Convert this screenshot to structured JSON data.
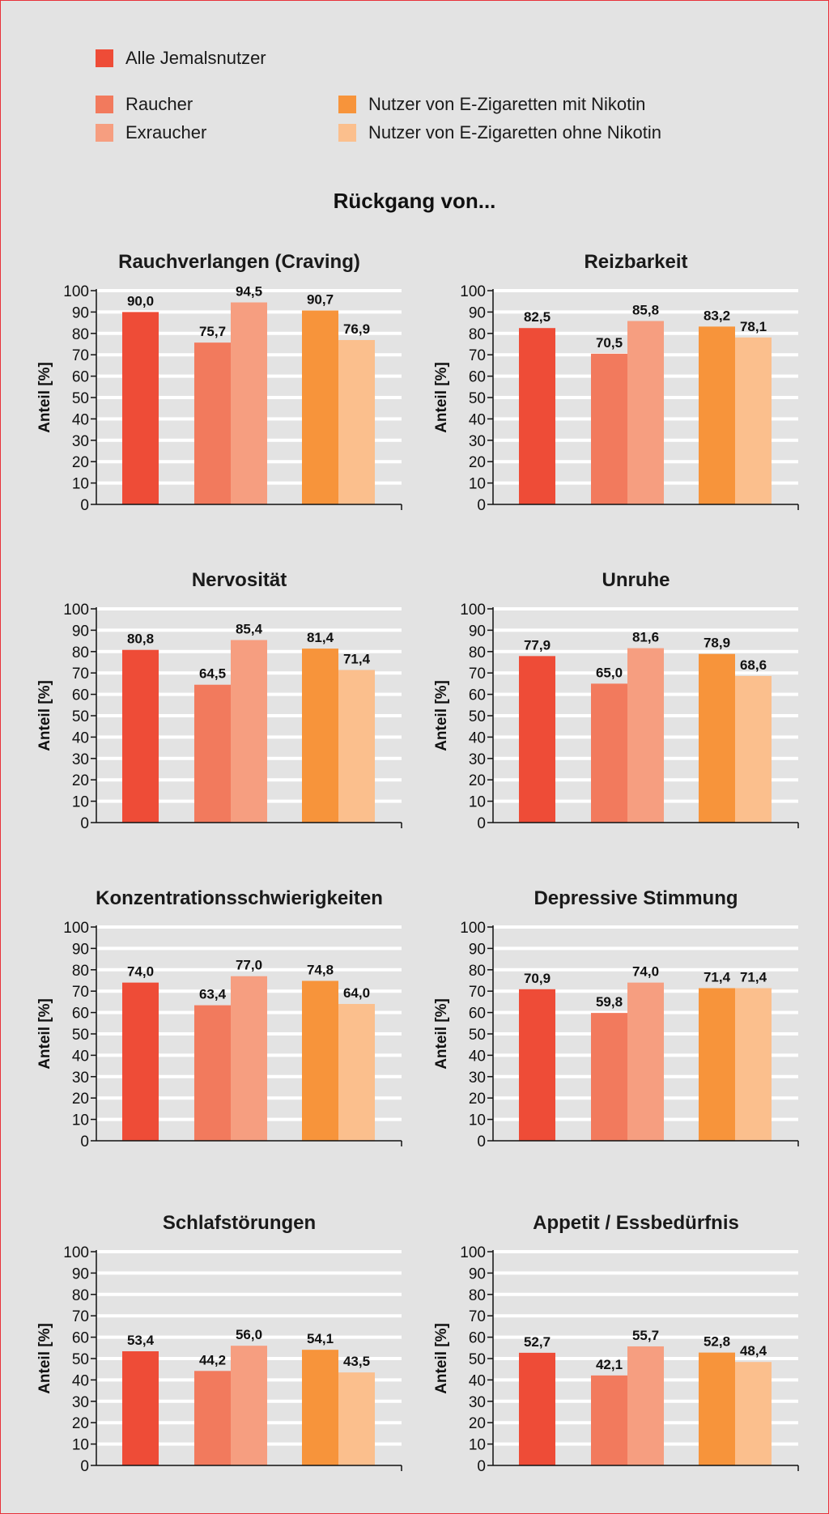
{
  "colors": {
    "alle": "#ee4c37",
    "raucher": "#f27a5d",
    "exraucher": "#f69e80",
    "ezig_mit": "#f7943b",
    "ezig_ohne": "#fbbf8d",
    "background": "#e3e3e3",
    "gridline": "#ffffff",
    "border": "#e8323a"
  },
  "legend": {
    "alle": "Alle Jemalsnutzer",
    "raucher": "Raucher",
    "exraucher": "Exraucher",
    "ezig_mit": "Nutzer von E-Zigaretten mit Nikotin",
    "ezig_ohne": "Nutzer von E-Zigaretten ohne Nikotin"
  },
  "main_title": "Rückgang von...",
  "chart_data": [
    {
      "type": "bar",
      "title": "Rauchverlangen (Craving)",
      "ylabel": "Anteil [%]",
      "ylim": [
        0,
        100
      ],
      "yticks": [
        "0",
        "10",
        "20",
        "30",
        "40",
        "50",
        "60",
        "70",
        "80",
        "90",
        "100"
      ],
      "series": [
        {
          "name": "Alle Jemalsnutzer",
          "value": 90.0,
          "label": "90,0"
        },
        {
          "name": "Raucher",
          "value": 75.7,
          "label": "75,7"
        },
        {
          "name": "Exraucher",
          "value": 94.5,
          "label": "94,5"
        },
        {
          "name": "Nutzer von E-Zigaretten mit Nikotin",
          "value": 90.7,
          "label": "90,7"
        },
        {
          "name": "Nutzer von E-Zigaretten ohne Nikotin",
          "value": 76.9,
          "label": "76,9"
        }
      ]
    },
    {
      "type": "bar",
      "title": "Reizbarkeit",
      "ylabel": "Anteil [%]",
      "ylim": [
        0,
        100
      ],
      "yticks": [
        "0",
        "10",
        "20",
        "30",
        "40",
        "50",
        "60",
        "70",
        "80",
        "90",
        "100"
      ],
      "series": [
        {
          "name": "Alle Jemalsnutzer",
          "value": 82.5,
          "label": "82,5"
        },
        {
          "name": "Raucher",
          "value": 70.5,
          "label": "70,5"
        },
        {
          "name": "Exraucher",
          "value": 85.8,
          "label": "85,8"
        },
        {
          "name": "Nutzer von E-Zigaretten mit Nikotin",
          "value": 83.2,
          "label": "83,2"
        },
        {
          "name": "Nutzer von E-Zigaretten ohne Nikotin",
          "value": 78.1,
          "label": "78,1"
        }
      ]
    },
    {
      "type": "bar",
      "title": "Nervosität",
      "ylabel": "Anteil [%]",
      "ylim": [
        0,
        100
      ],
      "yticks": [
        "0",
        "10",
        "20",
        "30",
        "40",
        "50",
        "60",
        "70",
        "80",
        "90",
        "100"
      ],
      "series": [
        {
          "name": "Alle Jemalsnutzer",
          "value": 80.8,
          "label": "80,8"
        },
        {
          "name": "Raucher",
          "value": 64.5,
          "label": "64,5"
        },
        {
          "name": "Exraucher",
          "value": 85.4,
          "label": "85,4"
        },
        {
          "name": "Nutzer von E-Zigaretten mit Nikotin",
          "value": 81.4,
          "label": "81,4"
        },
        {
          "name": "Nutzer von E-Zigaretten ohne Nikotin",
          "value": 71.4,
          "label": "71,4"
        }
      ]
    },
    {
      "type": "bar",
      "title": "Unruhe",
      "ylabel": "Anteil [%]",
      "ylim": [
        0,
        100
      ],
      "yticks": [
        "0",
        "10",
        "20",
        "30",
        "40",
        "50",
        "60",
        "70",
        "80",
        "90",
        "100"
      ],
      "series": [
        {
          "name": "Alle Jemalsnutzer",
          "value": 77.9,
          "label": "77,9"
        },
        {
          "name": "Raucher",
          "value": 65.0,
          "label": "65,0"
        },
        {
          "name": "Exraucher",
          "value": 81.6,
          "label": "81,6"
        },
        {
          "name": "Nutzer von E-Zigaretten mit Nikotin",
          "value": 78.9,
          "label": "78,9"
        },
        {
          "name": "Nutzer von E-Zigaretten ohne Nikotin",
          "value": 68.6,
          "label": "68,6"
        }
      ]
    },
    {
      "type": "bar",
      "title": "Konzentrationsschwierigkeiten",
      "ylabel": "Anteil [%]",
      "ylim": [
        0,
        100
      ],
      "yticks": [
        "0",
        "10",
        "20",
        "30",
        "40",
        "50",
        "60",
        "70",
        "80",
        "90",
        "100"
      ],
      "series": [
        {
          "name": "Alle Jemalsnutzer",
          "value": 74.0,
          "label": "74,0"
        },
        {
          "name": "Raucher",
          "value": 63.4,
          "label": "63,4"
        },
        {
          "name": "Exraucher",
          "value": 77.0,
          "label": "77,0"
        },
        {
          "name": "Nutzer von E-Zigaretten mit Nikotin",
          "value": 74.8,
          "label": "74,8"
        },
        {
          "name": "Nutzer von E-Zigaretten ohne Nikotin",
          "value": 64.0,
          "label": "64,0"
        }
      ]
    },
    {
      "type": "bar",
      "title": "Depressive Stimmung",
      "ylabel": "Anteil [%]",
      "ylim": [
        0,
        100
      ],
      "yticks": [
        "0",
        "10",
        "20",
        "30",
        "40",
        "50",
        "60",
        "70",
        "80",
        "90",
        "100"
      ],
      "series": [
        {
          "name": "Alle Jemalsnutzer",
          "value": 70.9,
          "label": "70,9"
        },
        {
          "name": "Raucher",
          "value": 59.8,
          "label": "59,8"
        },
        {
          "name": "Exraucher",
          "value": 74.0,
          "label": "74,0"
        },
        {
          "name": "Nutzer von E-Zigaretten mit Nikotin",
          "value": 71.4,
          "label": "71,4"
        },
        {
          "name": "Nutzer von E-Zigaretten ohne Nikotin",
          "value": 71.4,
          "label": "71,4"
        }
      ]
    },
    {
      "type": "bar",
      "title": "Schlafstörungen",
      "ylabel": "Anteil [%]",
      "ylim": [
        0,
        100
      ],
      "yticks": [
        "0",
        "10",
        "20",
        "30",
        "40",
        "50",
        "60",
        "70",
        "80",
        "90",
        "100"
      ],
      "series": [
        {
          "name": "Alle Jemalsnutzer",
          "value": 53.4,
          "label": "53,4"
        },
        {
          "name": "Raucher",
          "value": 44.2,
          "label": "44,2"
        },
        {
          "name": "Exraucher",
          "value": 56.0,
          "label": "56,0"
        },
        {
          "name": "Nutzer von E-Zigaretten mit Nikotin",
          "value": 54.1,
          "label": "54,1"
        },
        {
          "name": "Nutzer von E-Zigaretten ohne Nikotin",
          "value": 43.5,
          "label": "43,5"
        }
      ]
    },
    {
      "type": "bar",
      "title": "Appetit / Essbedürfnis",
      "ylabel": "Anteil [%]",
      "ylim": [
        0,
        100
      ],
      "yticks": [
        "0",
        "10",
        "20",
        "30",
        "40",
        "50",
        "60",
        "70",
        "80",
        "90",
        "100"
      ],
      "series": [
        {
          "name": "Alle Jemalsnutzer",
          "value": 52.7,
          "label": "52,7"
        },
        {
          "name": "Raucher",
          "value": 42.1,
          "label": "42,1"
        },
        {
          "name": "Exraucher",
          "value": 55.7,
          "label": "55,7"
        },
        {
          "name": "Nutzer von E-Zigaretten mit Nikotin",
          "value": 52.8,
          "label": "52,8"
        },
        {
          "name": "Nutzer von E-Zigaretten ohne Nikotin",
          "value": 48.4,
          "label": "48,4"
        }
      ]
    }
  ]
}
